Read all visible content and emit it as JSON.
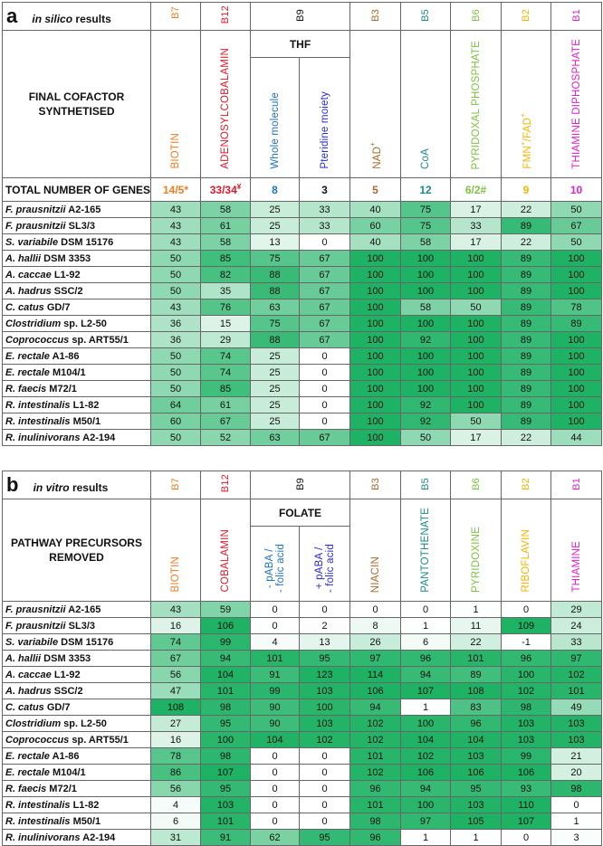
{
  "panel_a": {
    "letter": "a",
    "title_italic": "in silico",
    "title_rest": "results",
    "vitamins": [
      {
        "code": "B7",
        "color": "#f07c20"
      },
      {
        "code": "B12",
        "color": "#e0182b"
      },
      {
        "code": "B9",
        "color": "#111111"
      },
      {
        "code": "B3",
        "color": "#a86a2c"
      },
      {
        "code": "B5",
        "color": "#1a8a8a"
      },
      {
        "code": "B6",
        "color": "#7dc242"
      },
      {
        "code": "B2",
        "color": "#f5b400"
      },
      {
        "code": "B1",
        "color": "#e020c8"
      }
    ],
    "row_header": "FINAL COFACTOR SYNTHETISED",
    "b9_group": "THF",
    "cofactors": [
      {
        "label": "BIOTIN",
        "color": "#f07c20"
      },
      {
        "label": "ADENOSYLCOBALAMIN",
        "color": "#e0182b"
      },
      {
        "label": "Whole molecule",
        "color": "#1e73be"
      },
      {
        "label": "Pteridine moiety",
        "color": "#2a2ad0"
      },
      {
        "label": "NAD",
        "sup": "+",
        "color": "#a86a2c"
      },
      {
        "label": "CoA",
        "color": "#1a8a8a"
      },
      {
        "label": "PYRIDOXAL PHOSPHATE",
        "color": "#7dc242"
      },
      {
        "label": "FMN",
        "sup": "+",
        "label2": "/FAD",
        "sup2": "+",
        "color": "#f5b400"
      },
      {
        "label": "THIAMINE DIPHOSPHATE",
        "color": "#e020c8"
      }
    ],
    "totals_label": "TOTAL NUMBER OF GENES",
    "totals": [
      {
        "text": "14/5*",
        "color": "#f07c20"
      },
      {
        "text": "33/34",
        "sup": "¥",
        "color": "#e0182b"
      },
      {
        "text": "8",
        "color": "#1e73be"
      },
      {
        "text": "3",
        "color": "#111111"
      },
      {
        "text": "5",
        "color": "#a86a2c"
      },
      {
        "text": "12",
        "color": "#1a8a8a"
      },
      {
        "text": "6/2#",
        "color": "#7dc242"
      },
      {
        "text": "9",
        "color": "#f5b400"
      },
      {
        "text": "10",
        "color": "#e020c8"
      }
    ],
    "rows": [
      {
        "genus": "F. prausnitzii",
        "strain": "A2-165",
        "values": [
          43,
          58,
          25,
          33,
          40,
          75,
          17,
          22,
          50
        ]
      },
      {
        "genus": "F. prausnitzii",
        "strain": "SL3/3",
        "values": [
          43,
          61,
          25,
          33,
          60,
          75,
          33,
          89,
          67
        ]
      },
      {
        "genus": "S. variabile",
        "strain": "DSM 15176",
        "values": [
          43,
          58,
          13,
          0,
          40,
          58,
          17,
          22,
          50
        ]
      },
      {
        "genus": "A. hallii",
        "strain": "DSM 3353",
        "values": [
          50,
          85,
          75,
          67,
          100,
          100,
          100,
          89,
          100
        ]
      },
      {
        "genus": "A. caccae",
        "strain": "L1-92",
        "values": [
          50,
          82,
          88,
          67,
          100,
          100,
          100,
          89,
          100
        ]
      },
      {
        "genus": "A. hadrus",
        "strain": "SSC/2",
        "values": [
          50,
          35,
          88,
          67,
          100,
          100,
          100,
          89,
          100
        ]
      },
      {
        "genus": "C. catus",
        "strain": "GD/7",
        "values": [
          43,
          76,
          63,
          67,
          100,
          58,
          50,
          89,
          78
        ]
      },
      {
        "genus": "Clostridium",
        "strain": "sp. L2-50",
        "values": [
          36,
          15,
          75,
          67,
          100,
          100,
          100,
          89,
          89
        ]
      },
      {
        "genus": "Coprococcus",
        "strain": "sp. ART55/1",
        "values": [
          36,
          29,
          88,
          67,
          100,
          92,
          100,
          89,
          100
        ]
      },
      {
        "genus": "E. rectale",
        "strain": "A1-86",
        "values": [
          50,
          74,
          25,
          0,
          100,
          100,
          100,
          89,
          100
        ]
      },
      {
        "genus": "E. rectale",
        "strain": "M104/1",
        "values": [
          50,
          74,
          25,
          0,
          100,
          100,
          100,
          89,
          100
        ]
      },
      {
        "genus": "R. faecis",
        "strain": "M72/1",
        "values": [
          50,
          85,
          25,
          0,
          100,
          100,
          100,
          89,
          100
        ]
      },
      {
        "genus": "R. intestinalis",
        "strain": "L1-82",
        "values": [
          64,
          61,
          25,
          0,
          100,
          92,
          100,
          89,
          100
        ]
      },
      {
        "genus": "R. intestinalis",
        "strain": "M50/1",
        "values": [
          60,
          67,
          25,
          0,
          100,
          92,
          50,
          89,
          100
        ]
      },
      {
        "genus": "R. inulinivorans",
        "strain": "A2-194",
        "values": [
          50,
          52,
          63,
          67,
          100,
          50,
          17,
          22,
          44
        ]
      }
    ]
  },
  "panel_b": {
    "letter": "b",
    "title_italic": "in vitro",
    "title_rest": "results",
    "vitamins": [
      {
        "code": "B7",
        "color": "#f07c20"
      },
      {
        "code": "B12",
        "color": "#e0182b"
      },
      {
        "code": "B9",
        "color": "#111111"
      },
      {
        "code": "B3",
        "color": "#a86a2c"
      },
      {
        "code": "B5",
        "color": "#1a8a8a"
      },
      {
        "code": "B6",
        "color": "#7dc242"
      },
      {
        "code": "B2",
        "color": "#f5b400"
      },
      {
        "code": "B1",
        "color": "#e020c8"
      }
    ],
    "row_header": "PATHWAY PRECURSORS REMOVED",
    "b9_group": "FOLATE",
    "precursors": [
      {
        "label": "BIOTIN",
        "color": "#f07c20"
      },
      {
        "label": "COBALAMIN",
        "color": "#e0182b"
      },
      {
        "label": "- pABA /",
        "label2": "- folic acid",
        "color": "#1e73be"
      },
      {
        "label": "+ pABA /",
        "label2": "- folic acid",
        "color": "#2a2ad0"
      },
      {
        "label": "NIACIN",
        "color": "#a86a2c"
      },
      {
        "label": "PANTOTHENATE",
        "color": "#1a8a8a"
      },
      {
        "label": "PYRIDOXINE",
        "color": "#7dc242"
      },
      {
        "label": "RIBOFLAVIN",
        "color": "#f5b400"
      },
      {
        "label": "THIAMINE",
        "color": "#e020c8"
      }
    ],
    "rows": [
      {
        "genus": "F. prausnitzii",
        "strain": "A2-165",
        "values": [
          43,
          59,
          0,
          0,
          0,
          0,
          1,
          0,
          29
        ]
      },
      {
        "genus": "F. prausnitzii",
        "strain": "SL3/3",
        "values": [
          16,
          106,
          0,
          2,
          8,
          1,
          11,
          109,
          24
        ]
      },
      {
        "genus": "S. variabile",
        "strain": "DSM 15176",
        "values": [
          74,
          99,
          4,
          13,
          26,
          6,
          22,
          -1,
          33
        ]
      },
      {
        "genus": "A. hallii",
        "strain": "DSM 3353",
        "values": [
          67,
          94,
          101,
          95,
          97,
          96,
          101,
          96,
          97
        ]
      },
      {
        "genus": "A. caccae",
        "strain": "L1-92",
        "values": [
          56,
          104,
          91,
          123,
          114,
          94,
          89,
          100,
          102
        ]
      },
      {
        "genus": "A. hadrus",
        "strain": "SSC/2",
        "values": [
          47,
          101,
          99,
          103,
          106,
          107,
          108,
          102,
          101
        ]
      },
      {
        "genus": "C. catus",
        "strain": "GD/7",
        "values": [
          108,
          98,
          90,
          100,
          94,
          1,
          83,
          98,
          49
        ]
      },
      {
        "genus": "Clostridium",
        "strain": "sp. L2-50",
        "values": [
          27,
          95,
          90,
          103,
          102,
          100,
          96,
          103,
          103
        ]
      },
      {
        "genus": "Coprococcus",
        "strain": "sp. ART55/1",
        "values": [
          16,
          100,
          104,
          102,
          102,
          104,
          104,
          103,
          103
        ]
      },
      {
        "genus": "E. rectale",
        "strain": "A1-86",
        "values": [
          78,
          98,
          0,
          0,
          101,
          102,
          103,
          99,
          21
        ]
      },
      {
        "genus": "E. rectale",
        "strain": "M104/1",
        "values": [
          86,
          107,
          0,
          0,
          102,
          106,
          106,
          106,
          20
        ]
      },
      {
        "genus": "R. faecis",
        "strain": "M72/1",
        "values": [
          56,
          95,
          0,
          0,
          96,
          94,
          95,
          93,
          98
        ]
      },
      {
        "genus": "R. intestinalis",
        "strain": "L1-82",
        "values": [
          4,
          103,
          0,
          0,
          101,
          100,
          103,
          110,
          0
        ]
      },
      {
        "genus": "R. intestinalis",
        "strain": "M50/1",
        "values": [
          6,
          101,
          0,
          0,
          98,
          97,
          105,
          107,
          1
        ]
      },
      {
        "genus": "R. inulinivorans",
        "strain": "A2-194",
        "values": [
          31,
          91,
          62,
          95,
          96,
          1,
          1,
          0,
          3
        ]
      }
    ]
  }
}
